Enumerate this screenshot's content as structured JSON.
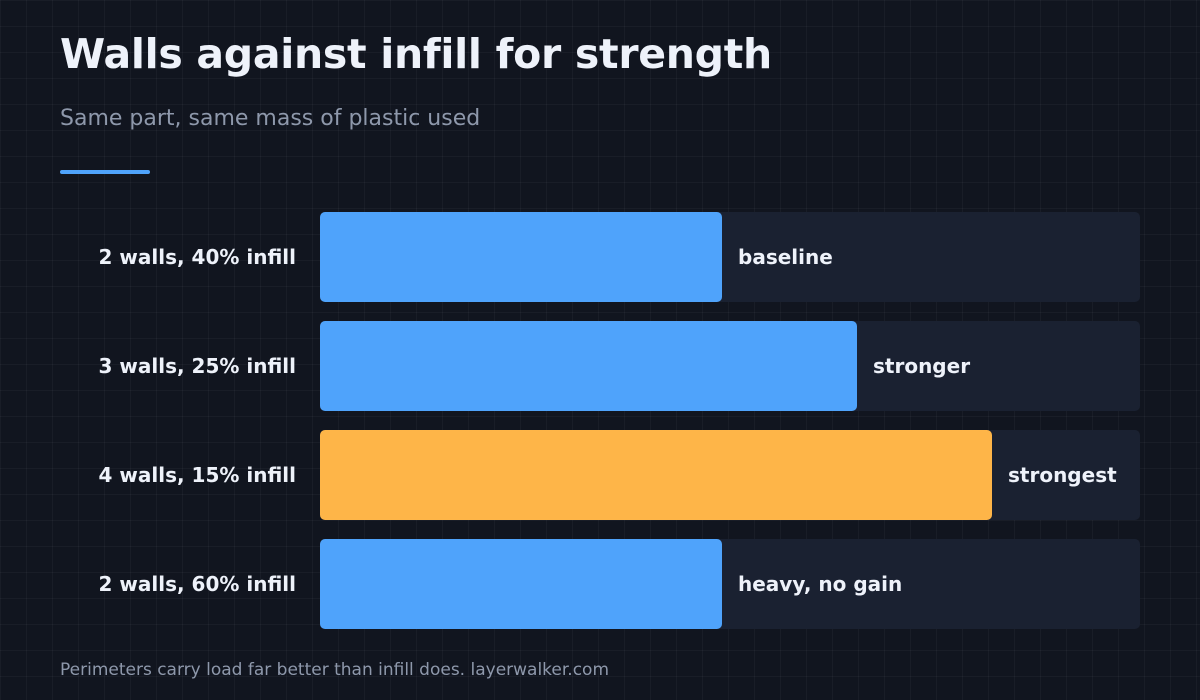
{
  "header": {
    "title": "Walls against infill for strength",
    "subtitle": "Same part, same mass of plastic used"
  },
  "footer": {
    "note": "Perimeters carry load far better than infill does. layerwalker.com"
  },
  "colors": {
    "background": "#11151f",
    "track": "#1a2131",
    "accent": "#4fa3fb",
    "bar_default": "#4fa3fb",
    "bar_highlight": "#feb548",
    "text_primary": "#eef2fa",
    "text_muted": "#8e98ab"
  },
  "chart_data": {
    "type": "bar",
    "orientation": "horizontal",
    "title": "Walls against infill for strength",
    "subtitle": "Same part, same mass of plastic used",
    "xlim": [
      0,
      100
    ],
    "grid": false,
    "categories": [
      "2 walls, 40% infill",
      "3 walls, 25% infill",
      "4 walls, 15% infill",
      "2 walls, 60% infill"
    ],
    "values": [
      49,
      65.5,
      82,
      49
    ],
    "labels": [
      "baseline",
      "stronger",
      "strongest",
      "heavy, no gain"
    ],
    "highlight": [
      false,
      false,
      true,
      false
    ]
  }
}
